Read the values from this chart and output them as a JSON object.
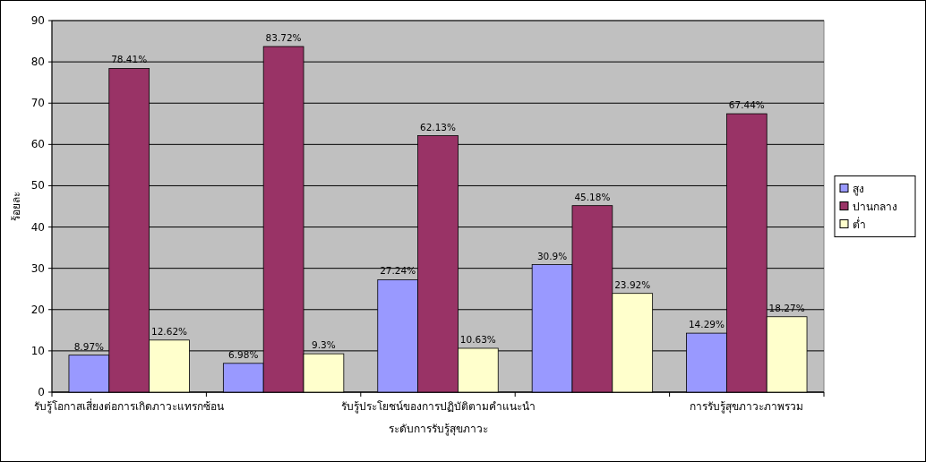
{
  "chart_data": {
    "type": "bar",
    "xlabel": "ระดับการรับรู้สุขภาวะ",
    "ylabel": "ร้อยละ",
    "categories": [
      "รับรู้โอกาสเสี่ยงต่อการเกิดภาวะแทรกซ้อน",
      null,
      "รับรู้ประโยชน์ของการปฏิบัติตามคำแนะนำ",
      null,
      "การรับรู้สุขภาวะภาพรวม"
    ],
    "series": [
      {
        "name": "สูง",
        "color": "#9999ff",
        "values": [
          8.97,
          6.98,
          27.24,
          30.9,
          14.29
        ],
        "value_labels": [
          "8.97%",
          "6.98%",
          "27.24%",
          "30.9%",
          "14.29%"
        ]
      },
      {
        "name": "ปานกลาง",
        "color": "#993366",
        "values": [
          78.41,
          83.72,
          62.13,
          45.18,
          67.44
        ],
        "value_labels": [
          "78.41%",
          "83.72%",
          "62.13%",
          "45.18%",
          "67.44%"
        ]
      },
      {
        "name": "ต่ำ",
        "color": "#ffffcc",
        "values": [
          12.62,
          9.3,
          10.63,
          23.92,
          18.27
        ],
        "value_labels": [
          "12.62%",
          "9.3%",
          "10.63%",
          "23.92%",
          "18.27%"
        ]
      }
    ],
    "ylim": [
      0,
      90
    ],
    "yticks": [
      0,
      10,
      20,
      30,
      40,
      50,
      60,
      70,
      80,
      90
    ],
    "grid": "y",
    "legend": "right"
  }
}
